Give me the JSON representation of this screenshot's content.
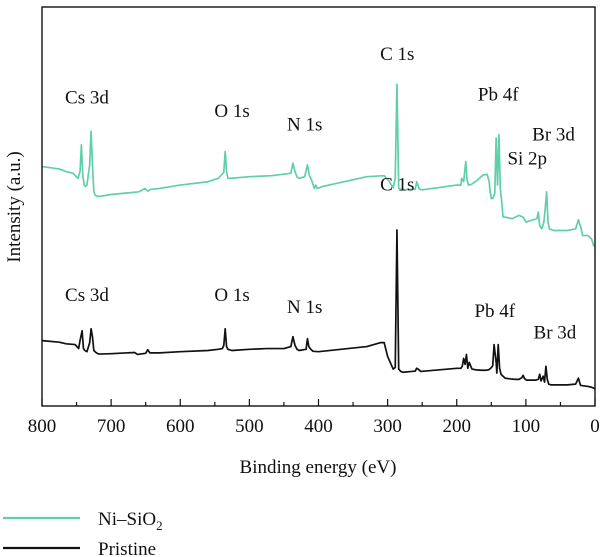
{
  "chart_data": {
    "type": "line",
    "title": "",
    "xlabel": "Binding energy (eV)",
    "ylabel": "Intensity (a.u.)",
    "x_reversed": true,
    "xlim": [
      800,
      0
    ],
    "ylim": [
      0,
      1
    ],
    "ytick_labels_shown": false,
    "xticks": [
      800,
      700,
      600,
      500,
      400,
      300,
      200,
      100,
      0
    ],
    "grid": false,
    "legend_position": "bottom-left, below plot",
    "series": [
      {
        "name": "Ni–SiO",
        "name_subscript": "2",
        "color": "#5fcfaa",
        "x": [
          800,
          775,
          765,
          755,
          748,
          745,
          743,
          741,
          739,
          737,
          735,
          731,
          729,
          727,
          725,
          723,
          721,
          718,
          700,
          660,
          651,
          647,
          643,
          630,
          600,
          560,
          545,
          537,
          535,
          533,
          531,
          528,
          500,
          468,
          440,
          437,
          434,
          431,
          428,
          420,
          416,
          413,
          410,
          406,
          404,
          402,
          399,
          394,
          330,
          305,
          298,
          292,
          289,
          286.5,
          284,
          282,
          278,
          260,
          258,
          254,
          250,
          200,
          194,
          193,
          190,
          187,
          185,
          183,
          179,
          170,
          162,
          156,
          153,
          152,
          150,
          148,
          145,
          143,
          141,
          139,
          137,
          135,
          133,
          130,
          120,
          110,
          104,
          100,
          84,
          82,
          80,
          77,
          74,
          72,
          70,
          68,
          66,
          60,
          40,
          28,
          24,
          20,
          18,
          10,
          5,
          2,
          0
        ],
        "y": [
          0.695,
          0.688,
          0.68,
          0.675,
          0.66,
          0.68,
          0.76,
          0.67,
          0.64,
          0.636,
          0.64,
          0.7,
          0.8,
          0.7,
          0.62,
          0.61,
          0.608,
          0.606,
          0.612,
          0.62,
          0.63,
          0.622,
          0.627,
          0.63,
          0.64,
          0.65,
          0.66,
          0.678,
          0.74,
          0.68,
          0.66,
          0.66,
          0.665,
          0.668,
          0.675,
          0.705,
          0.68,
          0.664,
          0.66,
          0.665,
          0.7,
          0.667,
          0.655,
          0.63,
          0.64,
          0.63,
          0.632,
          0.636,
          0.665,
          0.668,
          0.652,
          0.632,
          0.66,
          0.94,
          0.63,
          0.628,
          0.626,
          0.628,
          0.65,
          0.628,
          0.626,
          0.64,
          0.64,
          0.66,
          0.65,
          0.71,
          0.655,
          0.64,
          0.642,
          0.655,
          0.67,
          0.672,
          0.65,
          0.625,
          0.6,
          0.6,
          0.615,
          0.78,
          0.64,
          0.79,
          0.63,
          0.59,
          0.545,
          0.545,
          0.54,
          0.55,
          0.545,
          0.53,
          0.54,
          0.56,
          0.52,
          0.51,
          0.53,
          0.57,
          0.62,
          0.53,
          0.51,
          0.505,
          0.505,
          0.51,
          0.537,
          0.51,
          0.49,
          0.49,
          0.48,
          0.46,
          0.46
        ]
      },
      {
        "name": "Pristine",
        "color": "#111111",
        "x": [
          800,
          775,
          765,
          752,
          747,
          745,
          742,
          740,
          738,
          735,
          731,
          729,
          727,
          725,
          722,
          718,
          700,
          666,
          662,
          650,
          647,
          644,
          630,
          600,
          560,
          545,
          539,
          537,
          535,
          533,
          531,
          525,
          500,
          475,
          450,
          440,
          437,
          434,
          431,
          428,
          418,
          416,
          414,
          411,
          408,
          400,
          330,
          310,
          305,
          300,
          292,
          289,
          286.5,
          284,
          281,
          278,
          265,
          260,
          258,
          256,
          252,
          200,
          194,
          192,
          190,
          188,
          186,
          184,
          182,
          178,
          172,
          164,
          158,
          154,
          151,
          148,
          146,
          143,
          142,
          140,
          138,
          136,
          133,
          130,
          122,
          115,
          110,
          106,
          104,
          102,
          99,
          92,
          86,
          82,
          80,
          78,
          75,
          73,
          71,
          69,
          67,
          64,
          60,
          40,
          28,
          24,
          21,
          18,
          10,
          5,
          2,
          0
        ],
        "y": [
          0.13,
          0.126,
          0.122,
          0.12,
          0.11,
          0.13,
          0.155,
          0.11,
          0.105,
          0.102,
          0.125,
          0.16,
          0.14,
          0.105,
          0.1,
          0.096,
          0.097,
          0.1,
          0.095,
          0.098,
          0.107,
          0.099,
          0.099,
          0.102,
          0.105,
          0.108,
          0.11,
          0.118,
          0.16,
          0.115,
          0.108,
          0.105,
          0.108,
          0.11,
          0.11,
          0.115,
          0.14,
          0.118,
          0.108,
          0.105,
          0.108,
          0.135,
          0.115,
          0.108,
          0.103,
          0.102,
          0.115,
          0.125,
          0.125,
          0.09,
          0.058,
          0.062,
          0.41,
          0.058,
          0.052,
          0.05,
          0.052,
          0.053,
          0.06,
          0.058,
          0.052,
          0.06,
          0.06,
          0.065,
          0.085,
          0.07,
          0.095,
          0.06,
          0.075,
          0.058,
          0.056,
          0.055,
          0.055,
          0.056,
          0.06,
          0.066,
          0.12,
          0.075,
          0.048,
          0.12,
          0.06,
          0.045,
          0.04,
          0.035,
          0.033,
          0.032,
          0.032,
          0.036,
          0.042,
          0.034,
          0.03,
          0.03,
          0.03,
          0.032,
          0.045,
          0.028,
          0.04,
          0.025,
          0.065,
          0.032,
          0.02,
          0.018,
          0.018,
          0.018,
          0.02,
          0.035,
          0.017,
          0.016,
          0.014,
          0.012,
          0.01,
          0.008
        ]
      }
    ],
    "annotations": [
      {
        "id": "ni-cs3d",
        "text": "Cs 3d",
        "series": 0,
        "x": 735,
        "y": 0.87
      },
      {
        "id": "ni-o1s",
        "text": "O 1s",
        "series": 0,
        "x": 525,
        "y": 0.83
      },
      {
        "id": "ni-n1s",
        "text": "N 1s",
        "series": 0,
        "x": 420,
        "y": 0.79
      },
      {
        "id": "ni-c1s",
        "text": "C 1s",
        "series": 0,
        "x": 286,
        "y": 1.0
      },
      {
        "id": "ni-pb4f",
        "text": "Pb 4f",
        "series": 0,
        "x": 140,
        "y": 0.88
      },
      {
        "id": "ni-br3d",
        "text": "Br 3d",
        "series": 0,
        "x": 60,
        "y": 0.76
      },
      {
        "id": "ni-si2p",
        "text": "Si 2p",
        "series": 0,
        "x": 98,
        "y": 0.69
      },
      {
        "id": "pr-c1s",
        "text": "C 1s",
        "series": 1,
        "x": 286,
        "y": 0.5
      },
      {
        "id": "pr-cs3d",
        "text": "Cs 3d",
        "series": 1,
        "x": 735,
        "y": 0.22
      },
      {
        "id": "pr-o1s",
        "text": "O 1s",
        "series": 1,
        "x": 525,
        "y": 0.22
      },
      {
        "id": "pr-n1s",
        "text": "N 1s",
        "series": 1,
        "x": 420,
        "y": 0.19
      },
      {
        "id": "pr-pb4f",
        "text": "Pb 4f",
        "series": 1,
        "x": 145,
        "y": 0.18
      },
      {
        "id": "pr-br3d",
        "text": "Br 3d",
        "series": 1,
        "x": 58,
        "y": 0.125
      }
    ]
  }
}
